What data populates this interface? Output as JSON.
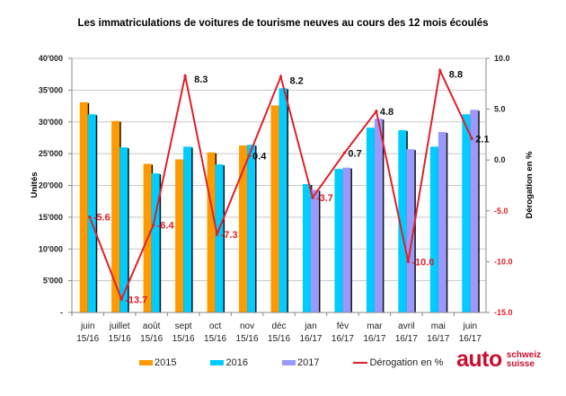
{
  "chart_data": {
    "type": "bar",
    "title": "Les immatriculations de voitures de tourisme neuves au cours des 12 mois écoulés",
    "xlabel": "",
    "ylabel": "Unités",
    "y2label": "Dérogation en %",
    "ylim": [
      0,
      40000
    ],
    "y2lim": [
      -15,
      10
    ],
    "grid": true,
    "legend_position": "bottom",
    "yticks": [
      "-",
      "5'000",
      "10'000",
      "15'000",
      "20'000",
      "25'000",
      "30'000",
      "35'000",
      "40'000"
    ],
    "y2ticks": [
      "-15.0",
      "-10.0",
      "-5.0",
      "0.0",
      "5.0",
      "10.0"
    ],
    "categories": [
      [
        "juin",
        "15/16"
      ],
      [
        "juillet",
        "15/16"
      ],
      [
        "août",
        "15/16"
      ],
      [
        "sept",
        "15/16"
      ],
      [
        "oct",
        "15/16"
      ],
      [
        "nov",
        "15/16"
      ],
      [
        "déc",
        "15/16"
      ],
      [
        "jan",
        "16/17"
      ],
      [
        "fév",
        "16/17"
      ],
      [
        "mar",
        "16/17"
      ],
      [
        "avril",
        "16/17"
      ],
      [
        "mai",
        "16/17"
      ],
      [
        "juin",
        "16/17"
      ]
    ],
    "series": [
      {
        "name": "2015",
        "type": "bar",
        "color": "#ff9900",
        "values": [
          33100,
          30150,
          23400,
          24100,
          25200,
          26300,
          32600,
          null,
          null,
          null,
          null,
          null,
          null
        ]
      },
      {
        "name": "2016",
        "type": "bar",
        "color": "#00ccff",
        "values": [
          31200,
          26000,
          21900,
          26100,
          23300,
          26400,
          35300,
          20200,
          22600,
          29100,
          28700,
          26100,
          31200
        ]
      },
      {
        "name": "2017",
        "type": "bar",
        "color": "#9999ff",
        "values": [
          null,
          null,
          null,
          null,
          null,
          null,
          null,
          19300,
          22800,
          30500,
          25700,
          28400,
          31900
        ]
      },
      {
        "name": "Dérogation en %",
        "type": "line",
        "axis": "right",
        "color": "#e0202a",
        "values": [
          -5.6,
          -13.7,
          -6.4,
          8.3,
          -7.3,
          0.4,
          8.2,
          -3.7,
          0.7,
          4.8,
          -10.0,
          8.8,
          2.1
        ],
        "labels": [
          "-5.6",
          "-13.7",
          "-6.4",
          "8.3",
          "-7.3",
          "0.4",
          "8.2",
          "-3.7",
          "0.7",
          "4.8",
          "-10.0",
          "8.8",
          "2.1"
        ]
      }
    ]
  },
  "legend": {
    "items": [
      {
        "label": "2015",
        "color": "#ff9900"
      },
      {
        "label": "2016",
        "color": "#00ccff"
      },
      {
        "label": "2017",
        "color": "#9999ff"
      },
      {
        "label": "Dérogation en %",
        "color": "#e0202a"
      }
    ]
  },
  "logo": {
    "main": "auto",
    "line1": "schweiz",
    "line2": "suisse"
  }
}
